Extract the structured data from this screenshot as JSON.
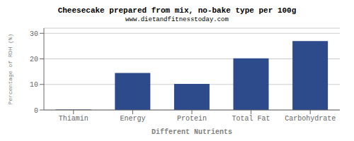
{
  "chart_data": {
    "type": "bar",
    "title": "Cheesecake prepared from mix, no-bake type per 100g",
    "subtitle": "www.dietandfitnesstoday.com",
    "xlabel": "Different Nutrients",
    "ylabel": "Percentage of RDH (%)",
    "categories": [
      "Thiamin",
      "Energy",
      "Protein",
      "Total Fat",
      "Carbohydrate"
    ],
    "values": [
      0.2,
      14.5,
      10.2,
      20.2,
      27.0
    ],
    "color": "#2d4a8a",
    "ylim": [
      0,
      32
    ],
    "yticks": [
      0,
      10,
      20,
      30
    ],
    "grid": true
  }
}
